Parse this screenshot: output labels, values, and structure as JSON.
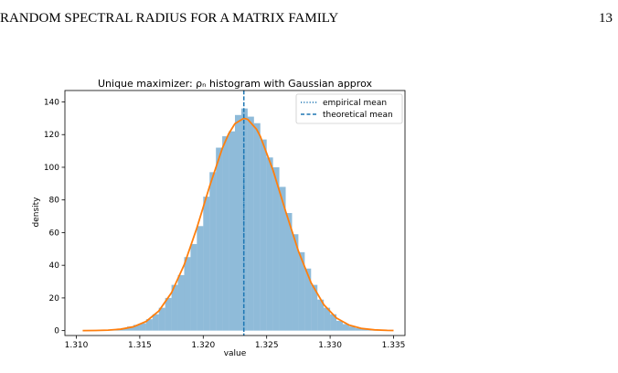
{
  "header": {
    "title": "RANDOM SPECTRAL RADIUS FOR A MATRIX FAMILY",
    "page": "13"
  },
  "chart_data": {
    "type": "histogram",
    "title": "Unique maximizer: ρₙ histogram with Gaussian approx",
    "x_label": "value",
    "y_label": "density",
    "color": "#1f77b4",
    "bins": [
      1.3125,
      1.313,
      1.3135,
      1.314,
      1.3145,
      1.315,
      1.3155,
      1.316,
      1.3165,
      1.317,
      1.3175,
      1.318,
      1.3185,
      1.319,
      1.3195,
      1.32,
      1.3205,
      1.321,
      1.3215,
      1.322,
      1.3225,
      1.323,
      1.3235,
      1.324,
      1.3245,
      1.325,
      1.3255,
      1.326,
      1.3265,
      1.327,
      1.3275,
      1.328,
      1.3285,
      1.329,
      1.3295,
      1.33,
      1.3305,
      1.331,
      1.3315,
      1.332,
      1.3325,
      1.333,
      1.3335,
      1.334
    ],
    "values": [
      0.5,
      0.8,
      1.5,
      2.5,
      3.5,
      4.5,
      7,
      10,
      14,
      20,
      28,
      34,
      45,
      53,
      64,
      82,
      97,
      112,
      119,
      122,
      132,
      136,
      131,
      127,
      117,
      106,
      100,
      88,
      72,
      59,
      48,
      38,
      28,
      19,
      14,
      10,
      6,
      4,
      2.5,
      1.5,
      1,
      0.5,
      0.3
    ],
    "curve": {
      "color": "#ff7f0e",
      "x": [
        1.3105,
        1.3115,
        1.3125,
        1.3135,
        1.3145,
        1.3155,
        1.3165,
        1.3175,
        1.3185,
        1.3195,
        1.3205,
        1.3215,
        1.322,
        1.3225,
        1.3232,
        1.3235,
        1.3242,
        1.3245,
        1.3255,
        1.3265,
        1.3275,
        1.3285,
        1.3295,
        1.3305,
        1.3315,
        1.3325,
        1.3335,
        1.3345,
        1.335
      ],
      "y": [
        0.02,
        0.09,
        0.3,
        0.88,
        2.35,
        5.6,
        12.0,
        23.2,
        40.3,
        62.9,
        88.3,
        111.5,
        120.4,
        126.7,
        130,
        129.4,
        123.3,
        118.9,
        98.2,
        72.9,
        48.7,
        29.3,
        15.9,
        7.7,
        3.4,
        1.3,
        0.47,
        0.15,
        0.08
      ]
    },
    "vlines": [
      {
        "name": "empirical mean",
        "x": 1.3232,
        "color": "#1f77b4",
        "style": "dotted"
      },
      {
        "name": "theoretical mean",
        "x": 1.3232,
        "color": "#1f77b4",
        "style": "dashed"
      }
    ],
    "xlim": [
      1.3091,
      1.3359
    ],
    "ylim": [
      -3,
      147
    ],
    "xticks": [
      {
        "value": 1.31,
        "label": "1.310"
      },
      1.315,
      {
        "value": 1.32,
        "label": "1.320"
      },
      1.325,
      {
        "value": 1.33,
        "label": "1.330"
      },
      1.335
    ],
    "yticks": [
      0,
      20,
      40,
      60,
      80,
      100,
      120,
      140
    ],
    "legend": "upper right"
  }
}
